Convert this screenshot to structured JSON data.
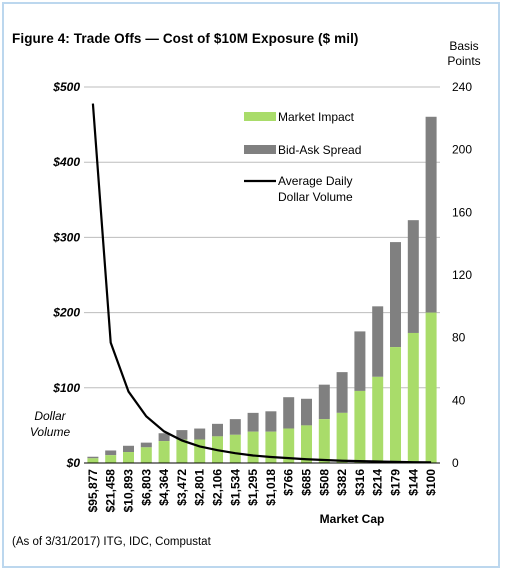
{
  "figure": {
    "title": "Figure 4: Trade Offs — Cost of $10M Exposure ($ mil)",
    "source": "(As of 3/31/2017) ITG, IDC, Compustat"
  },
  "chart_data": {
    "type": "bar",
    "stacked": true,
    "title": "Figure 4: Trade Offs — Cost of $10M Exposure ($ mil)",
    "xlabel": "Market Cap",
    "ylabel_left": "Dollar Volume",
    "ylabel_right": "Basis Points",
    "categories": [
      "$95,877",
      "$21,458",
      "$10,893",
      "$6,803",
      "$4,364",
      "$3,472",
      "$2,801",
      "$2,106",
      "$1,534",
      "$1,295",
      "$1,018",
      "$766",
      "$685",
      "$508",
      "$382",
      "$316",
      "$214",
      "$179",
      "$144",
      "$100"
    ],
    "series": [
      {
        "name": "Market Impact",
        "axis": "right",
        "color": "#a9dc6a",
        "values": [
          3,
          5,
          7,
          10,
          14,
          15,
          15,
          17,
          18,
          20,
          20,
          22,
          24,
          28,
          32,
          46,
          55,
          74,
          83,
          96
        ]
      },
      {
        "name": "Bid-Ask Spread",
        "axis": "right",
        "color": "#808080",
        "values": [
          1,
          3,
          4,
          3,
          5,
          6,
          7,
          8,
          10,
          12,
          13,
          20,
          17,
          22,
          26,
          38,
          45,
          67,
          72,
          125
        ]
      },
      {
        "name": "Average Daily Dollar Volume",
        "axis": "left",
        "type": "line",
        "color": "#000000",
        "values": [
          478,
          160,
          95,
          62,
          42,
          30,
          22,
          17,
          13,
          10,
          8,
          6.5,
          5,
          4,
          3,
          2.5,
          2,
          1.5,
          1,
          0.8
        ]
      }
    ],
    "y_left": {
      "min": 0,
      "max": 500,
      "ticks": [
        "$0",
        "$100",
        "$200",
        "$300",
        "$400",
        "$500"
      ]
    },
    "y_right": {
      "min": 0,
      "max": 240,
      "ticks": [
        "0",
        "40",
        "80",
        "120",
        "160",
        "200",
        "240"
      ]
    },
    "legend": {
      "position": "top-right",
      "items": [
        {
          "label": "Market Impact",
          "color": "#a9dc6a",
          "kind": "box"
        },
        {
          "label": "Bid-Ask Spread",
          "color": "#808080",
          "kind": "box"
        },
        {
          "label_lines": [
            "Average Daily",
            "Dollar Volume"
          ],
          "color": "#000000",
          "kind": "line"
        }
      ]
    },
    "grid": true
  }
}
